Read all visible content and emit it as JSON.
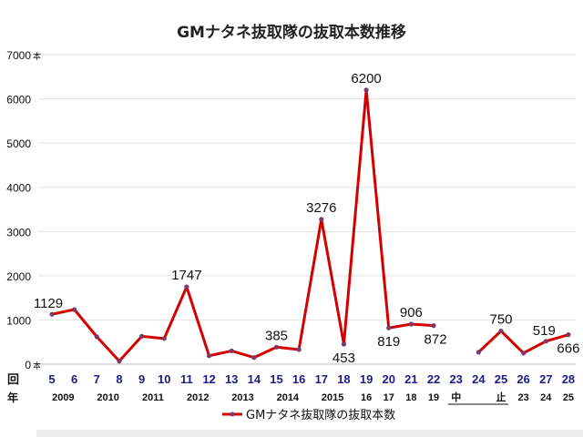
{
  "chart_data": {
    "type": "line",
    "title": "GMナタネ抜取隊の抜取本数推移",
    "ylabel_unit": "本",
    "ylim": [
      0,
      7000
    ],
    "yticks": [
      0,
      1000,
      2000,
      3000,
      4000,
      5000,
      6000,
      7000
    ],
    "grid": true,
    "legend": "bottom-center",
    "row_labels": {
      "round": "回",
      "year": "年"
    },
    "categories": [
      "5",
      "6",
      "7",
      "8",
      "9",
      "10",
      "11",
      "12",
      "13",
      "14",
      "15",
      "16",
      "17",
      "18",
      "19",
      "20",
      "21",
      "22",
      "23",
      "24",
      "25",
      "26",
      "27",
      "28"
    ],
    "year_labels": [
      {
        "text": "2009",
        "from": 0,
        "to": 1
      },
      {
        "text": "2010",
        "from": 2,
        "to": 3
      },
      {
        "text": "2011",
        "from": 4,
        "to": 5
      },
      {
        "text": "2012",
        "from": 6,
        "to": 7
      },
      {
        "text": "2013",
        "from": 8,
        "to": 9
      },
      {
        "text": "2014",
        "from": 10,
        "to": 11
      },
      {
        "text": "2015",
        "from": 12,
        "to": 13
      },
      {
        "text": "16",
        "from": 14,
        "to": 14
      },
      {
        "text": "17",
        "from": 15,
        "to": 15
      },
      {
        "text": "18",
        "from": 16,
        "to": 16
      },
      {
        "text": "19",
        "from": 17,
        "to": 17
      },
      {
        "text": "中",
        "from": 18,
        "to": 18,
        "underline": true
      },
      {
        "text": "止",
        "from": 20,
        "to": 20,
        "underline": true
      },
      {
        "text": "23",
        "from": 21,
        "to": 21
      },
      {
        "text": "24",
        "from": 22,
        "to": 22
      },
      {
        "text": "25",
        "from": 23,
        "to": 23
      }
    ],
    "series": [
      {
        "name": "GMナタネ抜取隊の抜取本数",
        "color": "#d40000",
        "values": [
          1129,
          1235,
          620,
          70,
          630,
          580,
          1747,
          190,
          300,
          150,
          385,
          330,
          3276,
          453,
          6200,
          819,
          906,
          872,
          null,
          270,
          750,
          250,
          519,
          666
        ],
        "labels": [
          {
            "index": 0,
            "text": "1129",
            "pos": "above-left"
          },
          {
            "index": 6,
            "text": "1747",
            "pos": "above"
          },
          {
            "index": 10,
            "text": "385",
            "pos": "above"
          },
          {
            "index": 12,
            "text": "3276",
            "pos": "above"
          },
          {
            "index": 13,
            "text": "453",
            "pos": "below"
          },
          {
            "index": 14,
            "text": "6200",
            "pos": "above"
          },
          {
            "index": 15,
            "text": "819",
            "pos": "below"
          },
          {
            "index": 16,
            "text": "906",
            "pos": "above"
          },
          {
            "index": 17,
            "text": "872",
            "pos": "below"
          },
          {
            "index": 20,
            "text": "750",
            "pos": "above"
          },
          {
            "index": 22,
            "text": "519",
            "pos": "above-left"
          },
          {
            "index": 23,
            "text": "666",
            "pos": "below"
          }
        ]
      }
    ]
  }
}
